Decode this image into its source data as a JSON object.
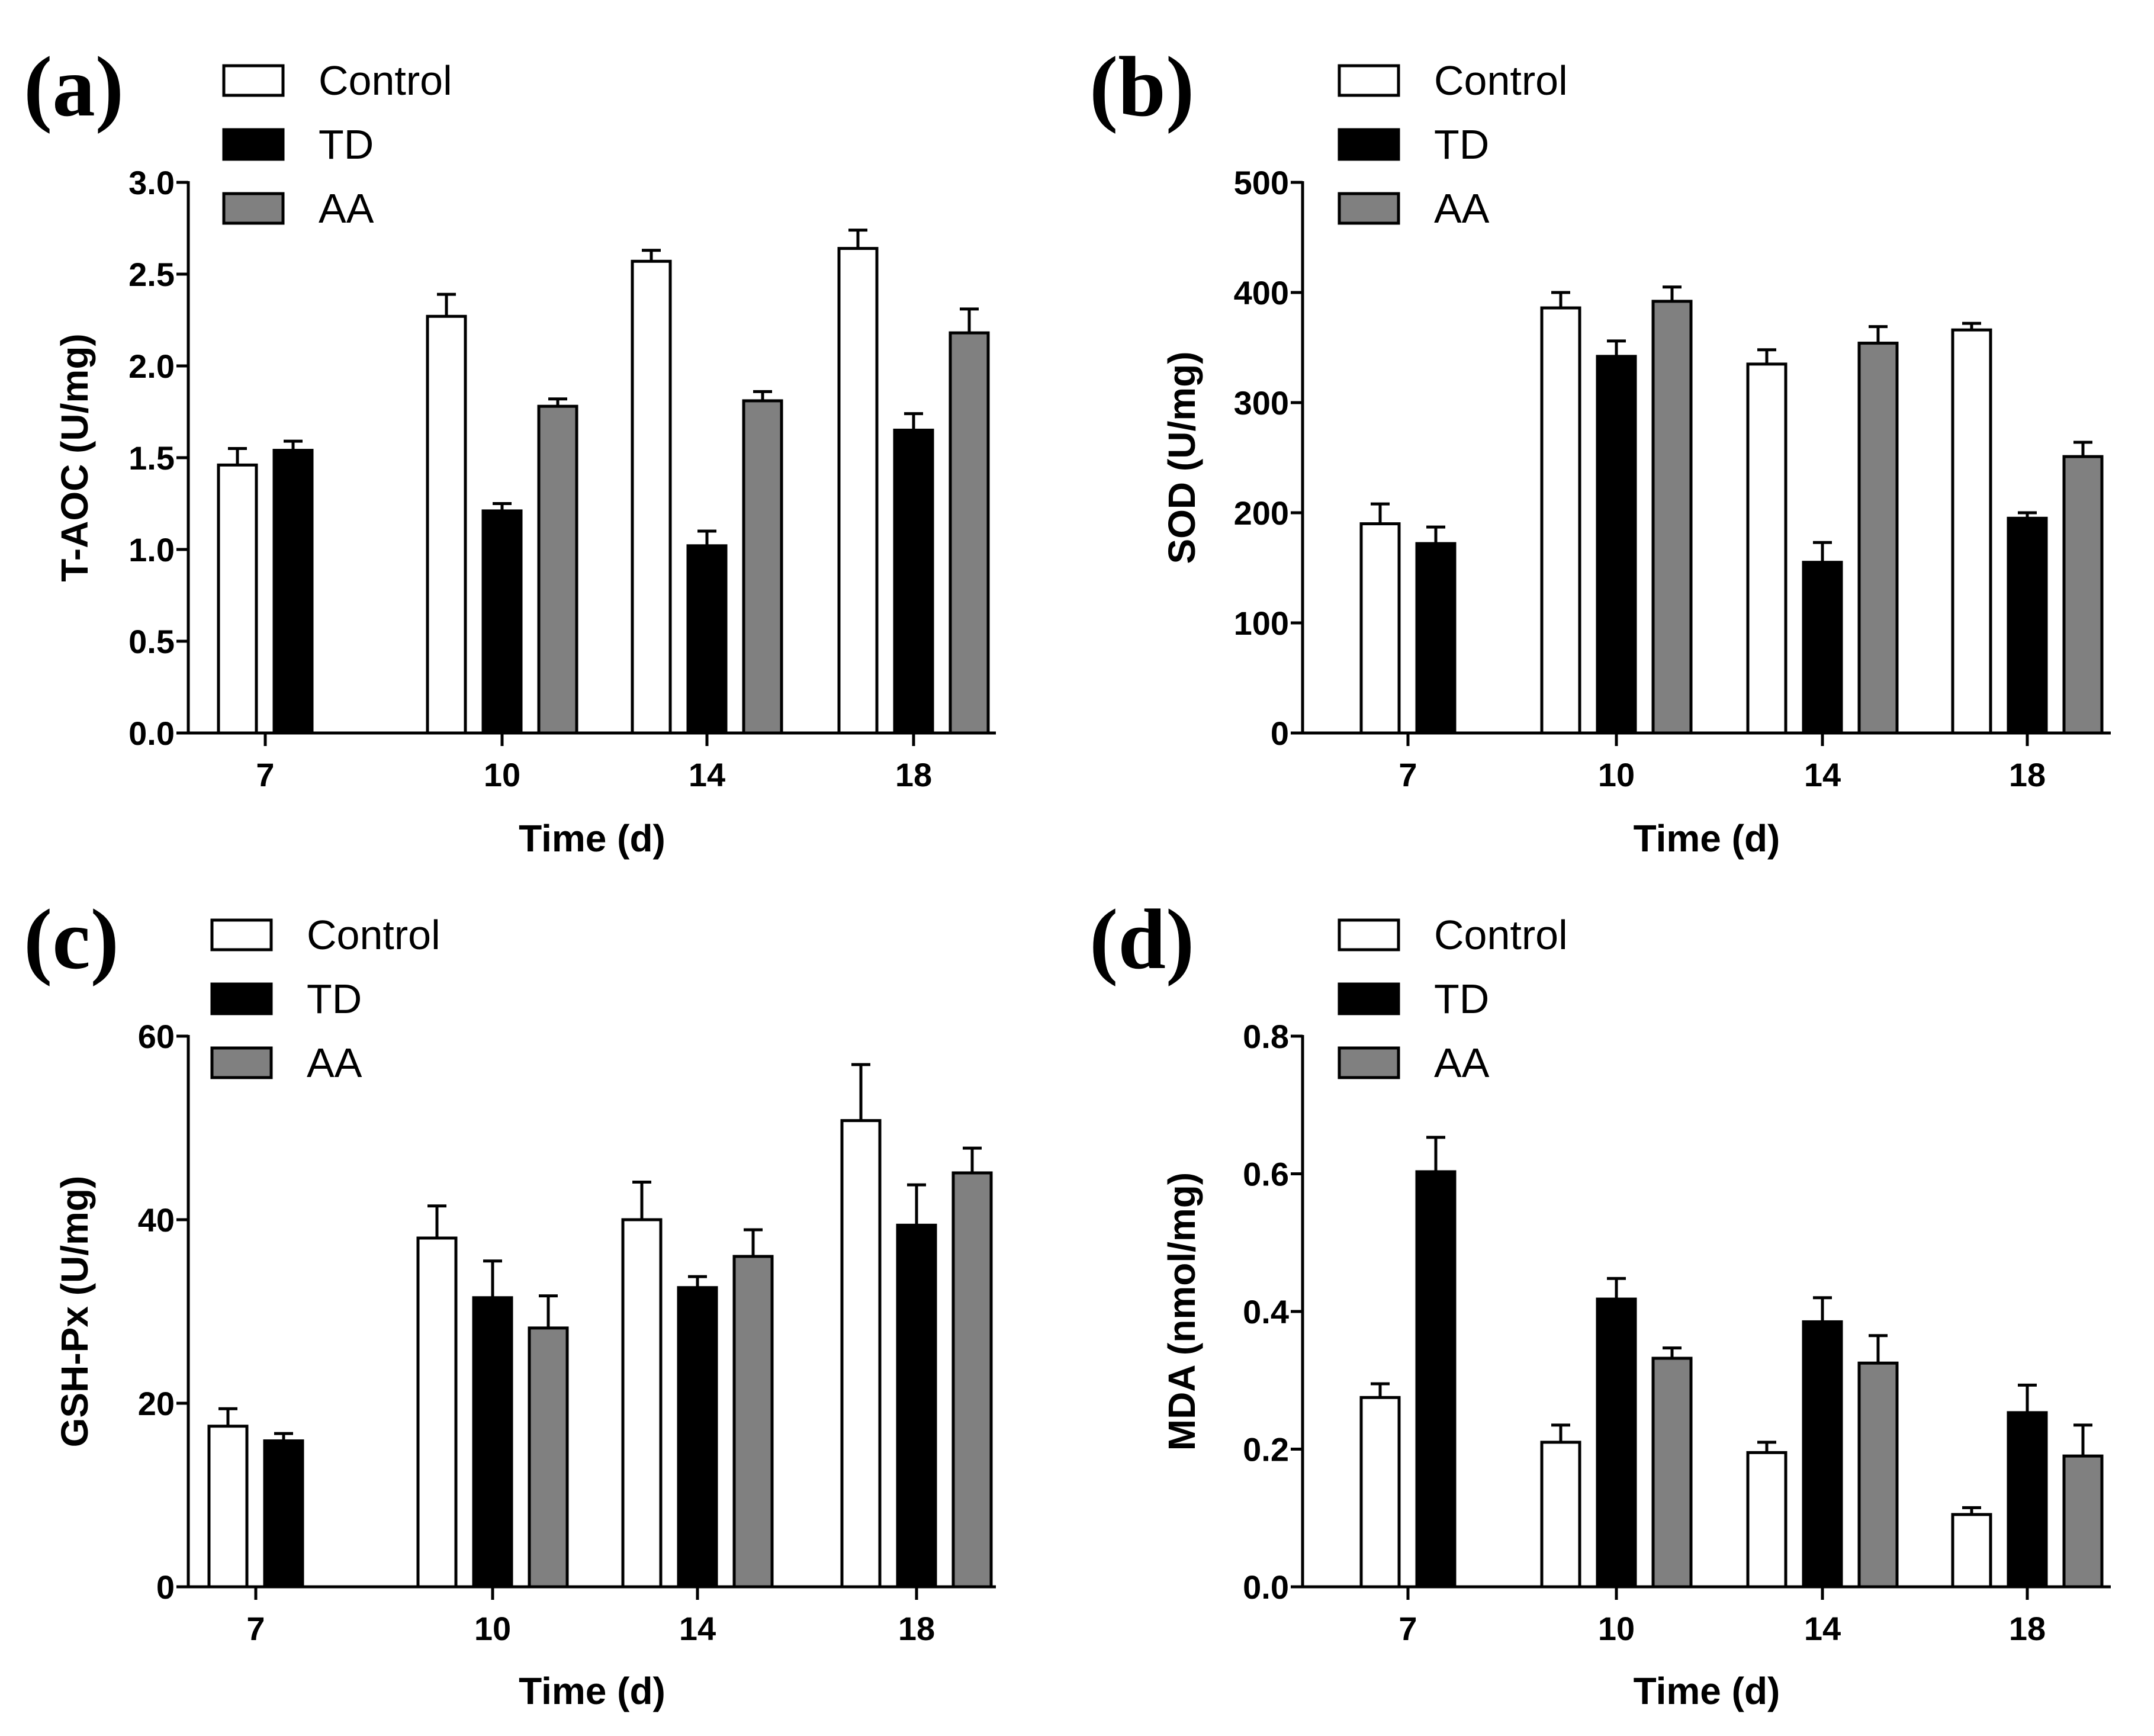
{
  "colors": {
    "Control": "#ffffff",
    "TD": "#000000",
    "AA": "#808080"
  },
  "chart_data": [
    {
      "type": "bar",
      "panel": "(a)",
      "title": "",
      "xlabel": "Time (d)",
      "ylabel": "T-AOC (U/mg)",
      "ylim": [
        0,
        3.0
      ],
      "yticks": [
        "0.0",
        "0.5",
        "1.0",
        "1.5",
        "2.0",
        "2.5",
        "3.0"
      ],
      "categories": [
        "7",
        "10",
        "14",
        "18"
      ],
      "legend": [
        "Control",
        "TD",
        "AA"
      ],
      "series": [
        {
          "name": "Control",
          "values": [
            1.46,
            2.27,
            2.57,
            2.64
          ],
          "errors": [
            0.09,
            0.12,
            0.06,
            0.1
          ]
        },
        {
          "name": "TD",
          "values": [
            1.54,
            1.21,
            1.02,
            1.65
          ],
          "errors": [
            0.05,
            0.04,
            0.08,
            0.09
          ]
        },
        {
          "name": "AA",
          "values": [
            null,
            1.78,
            1.81,
            2.18
          ],
          "errors": [
            null,
            0.04,
            0.05,
            0.13
          ]
        }
      ]
    },
    {
      "type": "bar",
      "panel": "(b)",
      "title": "",
      "xlabel": "Time (d)",
      "ylabel": "SOD (U/mg)",
      "ylim": [
        0,
        500
      ],
      "yticks": [
        "0",
        "100",
        "200",
        "300",
        "400",
        "500"
      ],
      "categories": [
        "7",
        "10",
        "14",
        "18"
      ],
      "legend": [
        "Control",
        "TD",
        "AA"
      ],
      "series": [
        {
          "name": "Control",
          "values": [
            190,
            386,
            335,
            366
          ],
          "errors": [
            18,
            14,
            13,
            6
          ]
        },
        {
          "name": "TD",
          "values": [
            172,
            342,
            155,
            195
          ],
          "errors": [
            15,
            14,
            18,
            5
          ]
        },
        {
          "name": "AA",
          "values": [
            null,
            392,
            354,
            251
          ],
          "errors": [
            null,
            13,
            15,
            13
          ]
        }
      ]
    },
    {
      "type": "bar",
      "panel": "(c)",
      "title": "",
      "xlabel": "Time (d)",
      "ylabel": "GSH-Px (U/mg)",
      "ylim": [
        0,
        60
      ],
      "yticks": [
        "0",
        "20",
        "40",
        "60"
      ],
      "categories": [
        "7",
        "10",
        "14",
        "18"
      ],
      "legend": [
        "Control",
        "TD",
        "AA"
      ],
      "series": [
        {
          "name": "Control",
          "values": [
            17.5,
            38.0,
            40.0,
            50.8
          ],
          "errors": [
            1.9,
            3.5,
            4.1,
            6.1
          ]
        },
        {
          "name": "TD",
          "values": [
            15.9,
            31.5,
            32.6,
            39.4
          ],
          "errors": [
            0.8,
            4.0,
            1.2,
            4.4
          ]
        },
        {
          "name": "AA",
          "values": [
            null,
            28.2,
            36.0,
            45.1
          ],
          "errors": [
            null,
            3.5,
            2.9,
            2.7
          ]
        }
      ]
    },
    {
      "type": "bar",
      "panel": "(d)",
      "title": "",
      "xlabel": "Time (d)",
      "ylabel": "MDA (nmol/mg)",
      "ylim": [
        0,
        0.8
      ],
      "yticks": [
        "0.0",
        "0.2",
        "0.4",
        "0.6",
        "0.8"
      ],
      "categories": [
        "7",
        "10",
        "14",
        "18"
      ],
      "legend": [
        "Control",
        "TD",
        "AA"
      ],
      "series": [
        {
          "name": "Control",
          "values": [
            0.275,
            0.21,
            0.195,
            0.105
          ],
          "errors": [
            0.02,
            0.025,
            0.015,
            0.01
          ]
        },
        {
          "name": "TD",
          "values": [
            0.603,
            0.418,
            0.385,
            0.253
          ],
          "errors": [
            0.05,
            0.03,
            0.035,
            0.04
          ]
        },
        {
          "name": "AA",
          "values": [
            null,
            0.332,
            0.325,
            0.19
          ],
          "errors": [
            null,
            0.015,
            0.04,
            0.045
          ]
        }
      ]
    }
  ]
}
